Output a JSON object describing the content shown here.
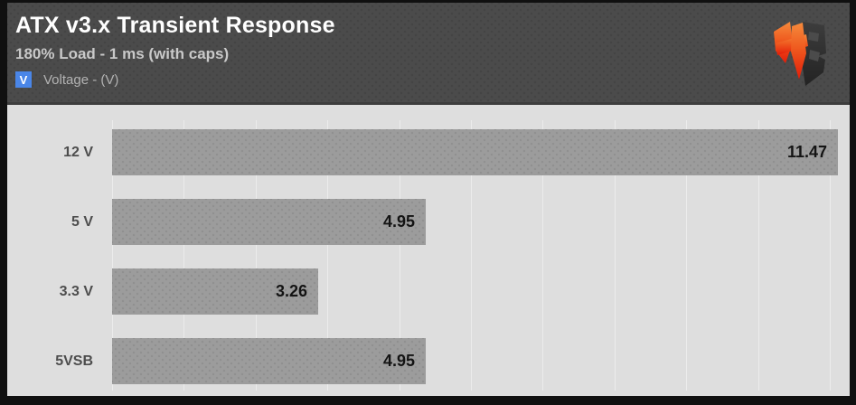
{
  "header": {
    "title": "ATX v3.x Transient Response",
    "subtitle": "180% Load - 1 ms (with caps)",
    "legend": {
      "symbol": "V",
      "label": "Voltage - (V)",
      "swatch_color": "#4a86e8"
    },
    "logo_name": "hardware-busters-logo"
  },
  "chart_data": {
    "type": "bar",
    "orientation": "horizontal",
    "title": "ATX v3.x Transient Response",
    "subtitle": "180% Load - 1 ms (with caps)",
    "series_label": "Voltage - (V)",
    "categories": [
      "12 V",
      "5 V",
      "3.3 V",
      "5VSB"
    ],
    "values": [
      11.47,
      4.95,
      3.26,
      4.95
    ],
    "value_labels": [
      "11.47",
      "4.95",
      "3.26",
      "4.95"
    ],
    "xlim": [
      0,
      11.6
    ],
    "grid": true,
    "gridline_count": 11,
    "legend_position": "top-left",
    "value_label_position": "inside-end",
    "bar_color": "#9c9c9c",
    "plot_background": "#dedede",
    "header_background": "#4b4b4b",
    "accent_color": "#4a86e8",
    "logo_colors": {
      "h_top": "#f58a3c",
      "h_bottom": "#e31c09",
      "b": "#333333"
    }
  }
}
